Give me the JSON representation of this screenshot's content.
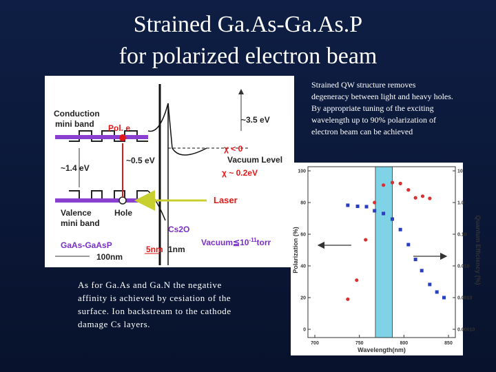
{
  "title": [
    "Strained Ga.As-Ga.As.P",
    "for polarized electron beam"
  ],
  "note_top": [
    "Strained QW structure removes",
    "degeneracy between light and heavy holes.",
    "By appropriate tuning of the exciting",
    "wavelength up to 90% polarization of",
    "electron beam can be achieved"
  ],
  "note_bottom": [
    "As for Ga.As and Ga.N the negative",
    "affinity is achieved by cesiation of the",
    "surface. Ion backstream to the cathode",
    "damage Cs layers."
  ],
  "diagram": {
    "conduction": [
      "Conduction",
      "mini band"
    ],
    "pol_e": "Pol. e",
    "barrier": "~3.5 eV",
    "chi_neg": "χ < 0",
    "split": "~0.5 eV",
    "vacuum_level": "Vacuum Level",
    "gap": "~1.4 eV",
    "chi_pos": "χ ~ 0.2eV",
    "laser": "Laser",
    "valence": [
      "Valence",
      "mini band"
    ],
    "hole": "Hole",
    "cs2o": "Cs2O",
    "material": "GaAs-GaAsP",
    "width_5": "5nm",
    "width_1": "1nm",
    "vacuum": [
      "Vacuum≦10",
      "-11",
      "torr"
    ],
    "width_100": "100nm"
  },
  "chart_data": {
    "type": "scatter",
    "xlabel": "Wavelength(nm)",
    "ylabel": "Polarization (%)",
    "y2label": "Quantum Efficiency (%)",
    "xlim": [
      700,
      850
    ],
    "xticks": [
      700,
      750,
      800,
      850
    ],
    "ylim": [
      0,
      100
    ],
    "yticks": [
      0,
      20,
      40,
      60,
      80,
      100
    ],
    "y2lim": [
      0.0001,
      10
    ],
    "y2log": true,
    "y2ticks": [
      10,
      {
        "value": 1,
        "label": "1.0"
      },
      {
        "value": 0.1,
        "label": "0.10"
      },
      {
        "value": 0.01,
        "label": "0.010"
      },
      {
        "value": 0.001,
        "label": "0.0010"
      },
      {
        "value": 0.0001,
        "label": "0.00010"
      }
    ],
    "highlight_x": [
      768,
      787
    ],
    "highlight_color": "#7fd3e6",
    "series": [
      {
        "color": "#d93030",
        "marker": "circle",
        "x": [
          737,
          747,
          757,
          767,
          777,
          787,
          796,
          805,
          813,
          821,
          829
        ],
        "values": [
          19,
          31,
          56.5,
          80,
          91,
          92.6,
          92,
          88,
          83,
          84,
          82.6
        ]
      },
      {
        "color": "#2a3fc0",
        "marker": "square",
        "axis": "y2",
        "x": [
          737,
          748,
          758,
          767,
          777,
          787,
          796,
          805,
          813,
          820,
          829,
          837,
          845
        ],
        "values": [
          0.82,
          0.76,
          0.74,
          0.55,
          0.45,
          0.3,
          0.14,
          0.047,
          0.016,
          0.0071,
          0.0026,
          0.0015,
          0.001
        ]
      }
    ]
  }
}
